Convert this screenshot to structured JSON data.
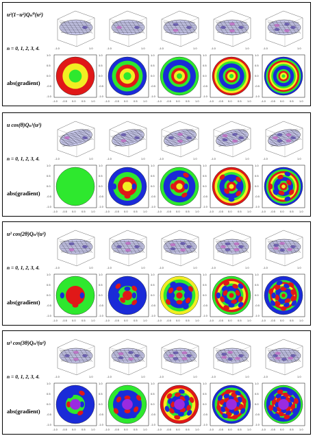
{
  "panels": [
    {
      "title": "u²(1−u²)Qₙ⁰(u²)",
      "n_label": "n = 0, 1, 2, 3, 4.",
      "grad_label": "abs(gradient)",
      "m": 0
    },
    {
      "title": "u cos(θ)Qₙ¹(u²)",
      "n_label": "n = 0, 1, 2, 3, 4.",
      "grad_label": "abs(gradient)",
      "m": 1
    },
    {
      "title": "u² cos(2θ)Qₙ²(u²)",
      "n_label": "n = 0, 1, 2, 3, 4.",
      "grad_label": "abs(gradient)",
      "m": 2
    },
    {
      "title": "u³ cos(3θ)Qₙ³(u²)",
      "n_label": "n = 0, 1, 2, 3, 4.",
      "grad_label": "abs(gradient)",
      "m": 3
    }
  ],
  "n_values": [
    0,
    1,
    2,
    3,
    4
  ],
  "axis_ticks": [
    "-1.0",
    "-0.5",
    "0.0",
    "0.5",
    "1.0"
  ],
  "colors": {
    "low": "#1d8a3a",
    "mid": "#2ee82e",
    "hi": "#e01818",
    "blue": "#1a2bd8",
    "purple": "#9a2be0"
  }
}
